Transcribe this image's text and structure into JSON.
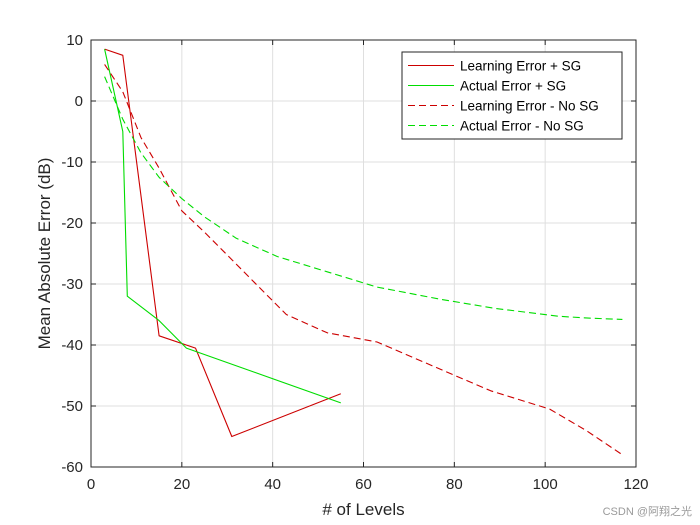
{
  "chart_data": {
    "type": "line",
    "title": "",
    "xlabel": "# of Levels",
    "ylabel": "Mean Absolute Error (dB)",
    "xlim": [
      0,
      120
    ],
    "ylim": [
      -60,
      10
    ],
    "xticks": [
      0,
      20,
      40,
      60,
      80,
      100,
      120
    ],
    "yticks": [
      10,
      0,
      -10,
      -20,
      -30,
      -40,
      -50,
      -60
    ],
    "grid": true,
    "legend_position": "top-right",
    "series": [
      {
        "name": "Learning Error + SG",
        "color": "#cc0000",
        "dash": "solid",
        "points": [
          [
            3,
            8.5
          ],
          [
            7,
            7.5
          ],
          [
            15,
            -38.5
          ],
          [
            23,
            -40.5
          ],
          [
            31,
            -55
          ],
          [
            55,
            -48
          ]
        ]
      },
      {
        "name": "Actual Error + SG",
        "color": "#00dd00",
        "dash": "solid",
        "points": [
          [
            3,
            8.5
          ],
          [
            7,
            -5
          ],
          [
            8,
            -32
          ],
          [
            15,
            -36
          ],
          [
            21,
            -40.5
          ],
          [
            55,
            -49.5
          ]
        ]
      },
      {
        "name": "Learning Error - No SG",
        "color": "#cc0000",
        "dash": "dashed",
        "points": [
          [
            3,
            6
          ],
          [
            7,
            1.5
          ],
          [
            11,
            -6
          ],
          [
            15,
            -11
          ],
          [
            20,
            -18
          ],
          [
            25,
            -21.5
          ],
          [
            31,
            -26
          ],
          [
            37,
            -30.5
          ],
          [
            43,
            -35
          ],
          [
            52,
            -38
          ],
          [
            63,
            -39.5
          ],
          [
            77,
            -44
          ],
          [
            88,
            -47.5
          ],
          [
            101,
            -50.5
          ],
          [
            109,
            -54
          ],
          [
            117,
            -58
          ]
        ]
      },
      {
        "name": "Actual Error - No SG",
        "color": "#00dd00",
        "dash": "dashed",
        "points": [
          [
            3,
            4
          ],
          [
            7,
            -3
          ],
          [
            11,
            -8.5
          ],
          [
            15,
            -12.5
          ],
          [
            20,
            -16
          ],
          [
            25,
            -19
          ],
          [
            32,
            -22.5
          ],
          [
            41,
            -25.5
          ],
          [
            52,
            -28
          ],
          [
            63,
            -30.5
          ],
          [
            77,
            -32.5
          ],
          [
            89,
            -34
          ],
          [
            103,
            -35.3
          ],
          [
            110,
            -35.6
          ],
          [
            117,
            -35.8
          ]
        ]
      }
    ]
  },
  "watermark": "CSDN @阿翔之光"
}
